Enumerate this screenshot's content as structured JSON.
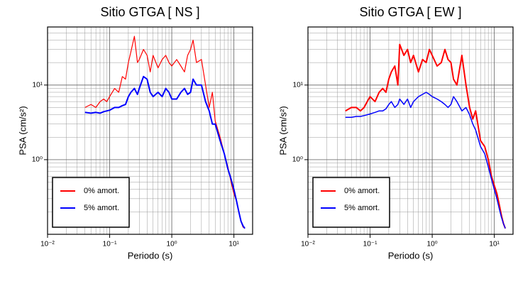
{
  "chart_data": [
    {
      "type": "line",
      "title": "Sitio GTGA [ NS ]",
      "xlabel": "Periodo (s)",
      "ylabel": "PSA (cm/s²)",
      "log_x": true,
      "log_y": true,
      "grid": true,
      "legend": "lower left",
      "xlim": [
        0.01,
        20
      ],
      "ylim": [
        0.1,
        60
      ],
      "xticks": [
        {
          "value": 0.01,
          "label": "10⁻²"
        },
        {
          "value": 0.1,
          "label": "10⁻¹"
        },
        {
          "value": 1,
          "label": "10⁰"
        },
        {
          "value": 10,
          "label": "10¹"
        }
      ],
      "yticks": [
        {
          "value": 1,
          "label": "10⁰"
        },
        {
          "value": 10,
          "label": "10¹"
        }
      ],
      "x": [
        0.04,
        0.05,
        0.06,
        0.07,
        0.08,
        0.09,
        0.1,
        0.12,
        0.14,
        0.16,
        0.18,
        0.2,
        0.22,
        0.25,
        0.28,
        0.3,
        0.35,
        0.4,
        0.45,
        0.5,
        0.6,
        0.7,
        0.8,
        0.9,
        1.0,
        1.2,
        1.4,
        1.6,
        1.8,
        2.0,
        2.2,
        2.5,
        3.0,
        3.5,
        4.0,
        4.5,
        5.0,
        6,
        7,
        8,
        9,
        10,
        11,
        12,
        13,
        14,
        15
      ],
      "series": [
        {
          "name": "0% amort.",
          "color": "#ff0000",
          "width": 1.2,
          "values": [
            5,
            5.5,
            5,
            6,
            6.5,
            6,
            7,
            9,
            8,
            13,
            12,
            20,
            28,
            45,
            20,
            22,
            30,
            25,
            15,
            25,
            17,
            22,
            25,
            20,
            18,
            22,
            18,
            15,
            25,
            30,
            40,
            20,
            22,
            10,
            5,
            8,
            3.3,
            2,
            1.2,
            0.8,
            0.5,
            0.35,
            0.28,
            0.2,
            0.15,
            0.125,
            0.12
          ]
        },
        {
          "name": "5% amort.",
          "color": "#0000ff",
          "width": 2,
          "values": [
            4.3,
            4.2,
            4.3,
            4.2,
            4.4,
            4.5,
            4.6,
            5,
            5,
            5.3,
            5.5,
            7,
            8,
            9,
            7.5,
            9,
            13,
            12,
            8,
            7,
            8,
            7,
            9,
            8,
            6.5,
            6.5,
            8,
            9,
            7.5,
            8,
            12,
            10,
            10,
            6,
            4.5,
            3,
            3,
            1.8,
            1.2,
            0.75,
            0.55,
            0.4,
            0.28,
            0.2,
            0.15,
            0.13,
            0.12
          ]
        }
      ]
    },
    {
      "type": "line",
      "title": "Sitio GTGA [ EW ]",
      "xlabel": "Periodo (s)",
      "ylabel": "PSA (cm/s²)",
      "log_x": true,
      "log_y": true,
      "grid": true,
      "legend": "lower left",
      "xlim": [
        0.01,
        20
      ],
      "ylim": [
        0.1,
        60
      ],
      "xticks": [
        {
          "value": 0.01,
          "label": "10⁻²"
        },
        {
          "value": 0.1,
          "label": "10⁻¹"
        },
        {
          "value": 1,
          "label": "10⁰"
        },
        {
          "value": 10,
          "label": "10¹"
        }
      ],
      "yticks": [
        {
          "value": 1,
          "label": "10⁰"
        },
        {
          "value": 10,
          "label": "10¹"
        }
      ],
      "x": [
        0.04,
        0.05,
        0.06,
        0.07,
        0.08,
        0.09,
        0.1,
        0.12,
        0.14,
        0.16,
        0.18,
        0.2,
        0.22,
        0.25,
        0.28,
        0.3,
        0.35,
        0.4,
        0.45,
        0.5,
        0.6,
        0.7,
        0.8,
        0.9,
        1.0,
        1.2,
        1.4,
        1.6,
        1.8,
        2.0,
        2.2,
        2.5,
        3.0,
        3.5,
        4.0,
        4.5,
        5.0,
        6,
        7,
        8,
        9,
        10,
        11,
        12,
        13,
        14,
        15
      ],
      "series": [
        {
          "name": "0% amort.",
          "color": "#ff0000",
          "width": 2,
          "values": [
            4.5,
            5,
            5,
            4.5,
            5,
            6,
            7,
            6,
            8,
            9,
            8,
            12,
            15,
            18,
            10,
            35,
            25,
            30,
            20,
            25,
            15,
            22,
            20,
            30,
            25,
            18,
            20,
            30,
            22,
            20,
            12,
            10,
            25,
            10,
            5,
            3.5,
            4.5,
            1.8,
            1.5,
            1.0,
            0.6,
            0.45,
            0.35,
            0.25,
            0.18,
            0.14,
            0.12
          ]
        },
        {
          "name": "5% amort.",
          "color": "#0000ff",
          "width": 1.5,
          "values": [
            3.7,
            3.7,
            3.8,
            3.8,
            3.9,
            4,
            4.1,
            4.3,
            4.5,
            4.5,
            4.8,
            5.5,
            6,
            5,
            5.5,
            6.5,
            5.5,
            6.5,
            5,
            6,
            7,
            7.5,
            8,
            7.5,
            7,
            6.5,
            6,
            5.5,
            5,
            5.5,
            7,
            6,
            4.5,
            5,
            4,
            3,
            2.5,
            1.5,
            1.2,
            0.8,
            0.55,
            0.4,
            0.3,
            0.22,
            0.17,
            0.14,
            0.12
          ]
        }
      ]
    }
  ]
}
